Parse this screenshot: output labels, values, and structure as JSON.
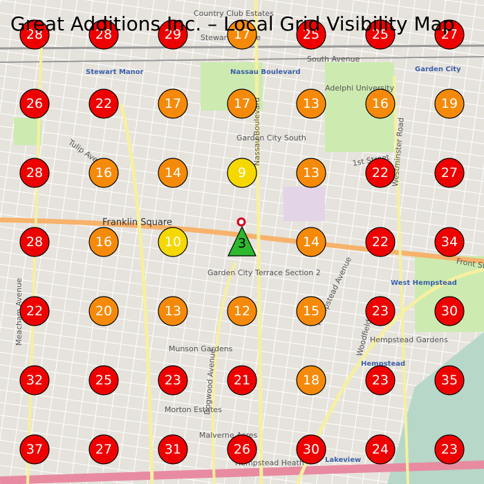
{
  "title": "Great Additions Inc. – Local Grid Visibility Map",
  "grid": {
    "rows": [
      [
        {
          "value": 28,
          "color": "#ee0000"
        },
        {
          "value": 28,
          "color": "#ee0000"
        },
        {
          "value": 29,
          "color": "#ee0000"
        },
        {
          "value": 17,
          "color": "#f58a0a"
        },
        {
          "value": 25,
          "color": "#ee0000"
        },
        {
          "value": 25,
          "color": "#ee0000"
        },
        {
          "value": 27,
          "color": "#ee0000"
        }
      ],
      [
        {
          "value": 26,
          "color": "#ee0000"
        },
        {
          "value": 22,
          "color": "#ee0000"
        },
        {
          "value": 17,
          "color": "#f58a0a"
        },
        {
          "value": 17,
          "color": "#f58a0a"
        },
        {
          "value": 13,
          "color": "#f58a0a"
        },
        {
          "value": 16,
          "color": "#f58a0a"
        },
        {
          "value": 19,
          "color": "#f58a0a"
        }
      ],
      [
        {
          "value": 28,
          "color": "#ee0000"
        },
        {
          "value": 16,
          "color": "#f58a0a"
        },
        {
          "value": 14,
          "color": "#f58a0a"
        },
        {
          "value": 9,
          "color": "#f5d800"
        },
        {
          "value": 13,
          "color": "#f58a0a"
        },
        {
          "value": 22,
          "color": "#ee0000"
        },
        {
          "value": 27,
          "color": "#ee0000"
        }
      ],
      [
        {
          "value": 28,
          "color": "#ee0000"
        },
        {
          "value": 16,
          "color": "#f58a0a"
        },
        {
          "value": 10,
          "color": "#f5d800"
        },
        {
          "value": 3,
          "color": "#2db82d",
          "shape": "triangle"
        },
        {
          "value": 14,
          "color": "#f58a0a"
        },
        {
          "value": 22,
          "color": "#ee0000"
        },
        {
          "value": 34,
          "color": "#ee0000"
        }
      ],
      [
        {
          "value": 22,
          "color": "#ee0000"
        },
        {
          "value": 20,
          "color": "#f58a0a"
        },
        {
          "value": 13,
          "color": "#f58a0a"
        },
        {
          "value": 12,
          "color": "#f58a0a"
        },
        {
          "value": 15,
          "color": "#f58a0a"
        },
        {
          "value": 23,
          "color": "#ee0000"
        },
        {
          "value": 30,
          "color": "#ee0000"
        }
      ],
      [
        {
          "value": 32,
          "color": "#ee0000"
        },
        {
          "value": 25,
          "color": "#ee0000"
        },
        {
          "value": 23,
          "color": "#ee0000"
        },
        {
          "value": 21,
          "color": "#ee0000"
        },
        {
          "value": 18,
          "color": "#f58a0a"
        },
        {
          "value": 23,
          "color": "#ee0000"
        },
        {
          "value": 35,
          "color": "#ee0000"
        }
      ],
      [
        {
          "value": 37,
          "color": "#ee0000"
        },
        {
          "value": 27,
          "color": "#ee0000"
        },
        {
          "value": 31,
          "color": "#ee0000"
        },
        {
          "value": 26,
          "color": "#ee0000"
        },
        {
          "value": 30,
          "color": "#ee0000"
        },
        {
          "value": 24,
          "color": "#ee0000"
        },
        {
          "value": 23,
          "color": "#ee0000"
        }
      ]
    ]
  },
  "places": [
    "Franklin Square",
    "Stewart Manor",
    "Nassau Boulevard",
    "Garden City South",
    "West Hempstead",
    "Hempstead Gardens",
    "Hempstead",
    "Munson Gardens",
    "Morton Estates",
    "Garden City Terrace Section 2",
    "Hempstead Heath",
    "Malverne Acres",
    "Garden City",
    "Adelphi University",
    "Lakeview",
    "Country Club Estates",
    "South Avenue",
    "Stewart Avenue",
    "Tulip Avenue",
    "1st Street",
    "Front Street",
    "Meacham Avenue",
    "Dogwood Avenue",
    "Hempstead Avenue",
    "Woodfield Road",
    "Nassau Boulevard",
    "Westminster Road"
  ]
}
